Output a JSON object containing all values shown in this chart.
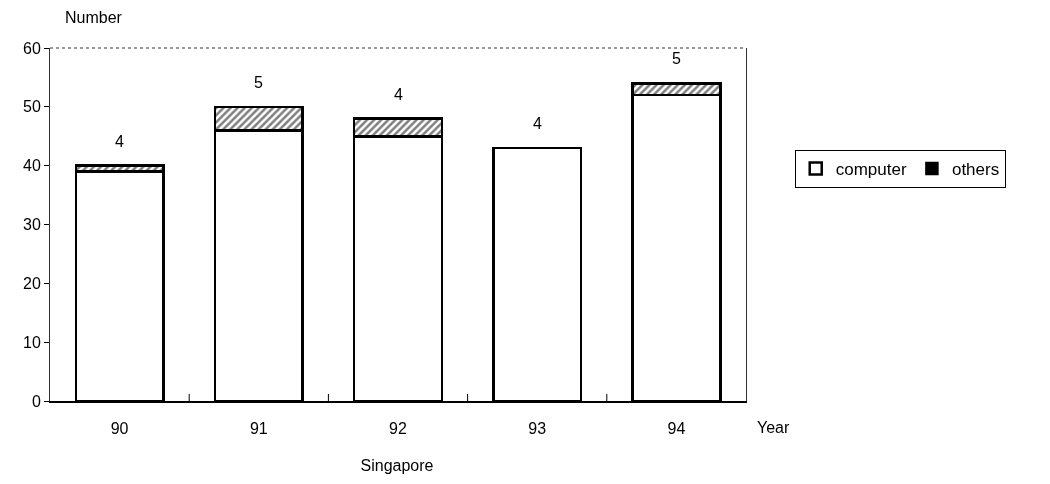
{
  "chart_data": {
    "type": "bar",
    "stacked": true,
    "title": "Singapore",
    "xlabel": "Year",
    "ylabel": "Number",
    "categories": [
      "90",
      "91",
      "92",
      "93",
      "94"
    ],
    "series": [
      {
        "name": "computer",
        "color": "#ffffff",
        "values": [
          39,
          46,
          45,
          43,
          52
        ]
      },
      {
        "name": "others",
        "color": "#000000",
        "values": [
          1,
          4,
          3,
          0,
          2
        ]
      }
    ],
    "ylim": [
      0,
      60
    ],
    "yticks": [
      0,
      10,
      20,
      30,
      40,
      50,
      60
    ],
    "grid": false,
    "legend": "right",
    "annotations": [
      {
        "text": "4",
        "x": "90",
        "y": 40
      },
      {
        "text": "5",
        "x": "91",
        "y": 50
      },
      {
        "text": "4",
        "x": "92",
        "y": 48
      },
      {
        "text": "4",
        "x": "93",
        "y": 43
      },
      {
        "text": "5",
        "x": "94",
        "y": 54
      }
    ]
  }
}
